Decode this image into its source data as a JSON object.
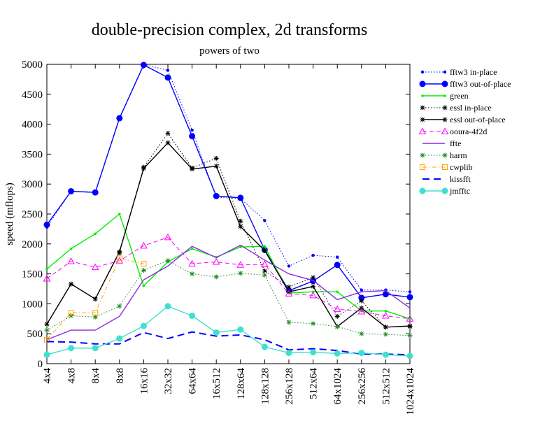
{
  "chart_data": {
    "type": "line",
    "title": "double-precision complex, 2d transforms",
    "subtitle": "powers of two",
    "xlabel": "",
    "ylabel": "speed (mflops)",
    "ylim": [
      0,
      5000
    ],
    "yticks": [
      0,
      500,
      1000,
      1500,
      2000,
      2500,
      3000,
      3500,
      4000,
      4500,
      5000
    ],
    "grid": false,
    "legend_position": "right",
    "categories": [
      "4x4",
      "4x8",
      "8x4",
      "8x8",
      "16x16",
      "32x32",
      "64x64",
      "16x512",
      "128x64",
      "128x128",
      "256x128",
      "512x64",
      "64x1024",
      "256x256",
      "512x512",
      "1024x1024"
    ],
    "series": [
      {
        "name": "fftw3 in-place",
        "color": "#0000ff",
        "dash": "dotted",
        "marker": "dot",
        "values": [
          2280,
          2880,
          2870,
          4100,
          5000,
          4900,
          3900,
          2780,
          2760,
          2390,
          1630,
          1810,
          1780,
          1230,
          1230,
          1200
        ]
      },
      {
        "name": "fftw3 out-of-place",
        "color": "#0000ff",
        "dash": "solid",
        "marker": "circle",
        "values": [
          2320,
          2880,
          2860,
          4100,
          4990,
          4780,
          3800,
          2800,
          2770,
          1900,
          1220,
          1380,
          1650,
          1100,
          1160,
          1110
        ]
      },
      {
        "name": "green",
        "color": "#00ee00",
        "dash": "solid",
        "marker": "smalldot",
        "values": [
          1580,
          1920,
          2170,
          2500,
          1300,
          1700,
          1920,
          1780,
          1950,
          1960,
          1180,
          1200,
          1200,
          880,
          880,
          750
        ]
      },
      {
        "name": "essl in-place",
        "color": "#000000",
        "dash": "dotted",
        "marker": "star",
        "values": [
          660,
          1330,
          1080,
          1850,
          3280,
          3850,
          3270,
          3430,
          2380,
          1550,
          1280,
          1440,
          790,
          1050,
          610,
          620
        ]
      },
      {
        "name": "essl out-of-place",
        "color": "#000000",
        "dash": "solid",
        "marker": "star",
        "values": [
          660,
          1330,
          1080,
          1870,
          3260,
          3690,
          3250,
          3300,
          2290,
          1890,
          1200,
          1290,
          620,
          930,
          610,
          630
        ]
      },
      {
        "name": "ooura-4f2d",
        "color": "#ff00ff",
        "dash": "dashed",
        "marker": "triangle",
        "values": [
          1420,
          1710,
          1610,
          1720,
          1970,
          2110,
          1670,
          1700,
          1650,
          1660,
          1170,
          1140,
          910,
          870,
          800,
          750
        ]
      },
      {
        "name": "ffte",
        "color": "#8a2be2",
        "dash": "solid",
        "marker": "none",
        "values": [
          400,
          560,
          560,
          790,
          1400,
          1630,
          1960,
          1770,
          1980,
          1730,
          1500,
          1390,
          1070,
          1200,
          1220,
          930
        ]
      },
      {
        "name": "harm",
        "color": "#228b22",
        "dash": "dotted",
        "marker": "star",
        "values": [
          560,
          800,
          780,
          960,
          1560,
          1720,
          1500,
          1450,
          1510,
          1480,
          690,
          670,
          620,
          500,
          490,
          470
        ]
      },
      {
        "name": "cwplib",
        "color": "#ffa500",
        "dash": "dashdot",
        "marker": "square",
        "values": [
          400,
          850,
          850,
          1760,
          1670,
          null,
          null,
          null,
          null,
          null,
          null,
          null,
          null,
          null,
          null,
          null
        ]
      },
      {
        "name": "kissfft",
        "color": "#0000ff",
        "dash": "longdash",
        "marker": "none",
        "values": [
          370,
          360,
          330,
          330,
          520,
          420,
          530,
          460,
          480,
          400,
          230,
          250,
          220,
          160,
          160,
          150
        ]
      },
      {
        "name": "jmfftc",
        "color": "#40e0d0",
        "dash": "solid",
        "marker": "circle",
        "values": [
          150,
          260,
          260,
          420,
          630,
          960,
          800,
          520,
          570,
          280,
          180,
          190,
          170,
          180,
          150,
          130
        ]
      }
    ]
  }
}
